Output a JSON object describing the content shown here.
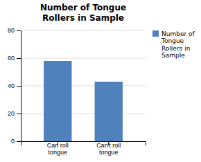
{
  "chart_data": {
    "type": "bar",
    "title": "Number of Tongue\nRollers in Sample",
    "categories": [
      "Can roll\ntongue",
      "Can't roll\ntongue"
    ],
    "series": [
      {
        "name": "Number of\nTongue\nRollers in\nSample",
        "color": "#4f81bd",
        "values": [
          58,
          43
        ]
      }
    ],
    "ylim": [
      0,
      80
    ],
    "yticks": [
      0,
      20,
      40,
      60,
      80
    ],
    "grid": true,
    "legend": "right"
  }
}
